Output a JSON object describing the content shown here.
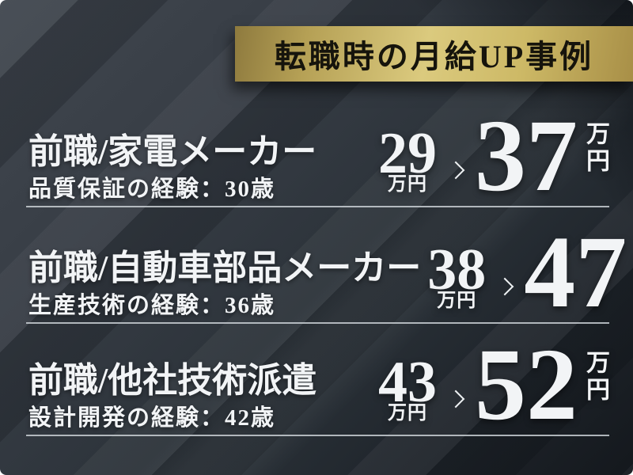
{
  "banner": {
    "title": "転職時の月給UP事例"
  },
  "cases": [
    {
      "previous_job": "前職/家電メーカー",
      "experience": "品質保証の経験：30歳",
      "salary_before": "29",
      "salary_before_unit": "万円",
      "salary_after": "37",
      "salary_after_unit": "万円"
    },
    {
      "previous_job": "前職/自動車部品メーカー",
      "experience": "生産技術の経験：36歳",
      "salary_before": "38",
      "salary_before_unit": "万円",
      "salary_after": "47",
      "salary_after_unit": "万円"
    },
    {
      "previous_job": "前職/他社技術派遣",
      "experience": "設計開発の経験：42歳",
      "salary_before": "43",
      "salary_before_unit": "万円",
      "salary_after": "52",
      "salary_after_unit": "万円"
    }
  ],
  "icons": {
    "arrow": "chevron-right"
  },
  "colors": {
    "background_top_left": "#41474f",
    "background_bottom_right": "#14181d",
    "gold_light": "#dbca7e",
    "gold_dark": "#8e7a3e",
    "banner_text": "#16140c",
    "text": "#f2f4f6",
    "divider": "#c9cfd4"
  }
}
